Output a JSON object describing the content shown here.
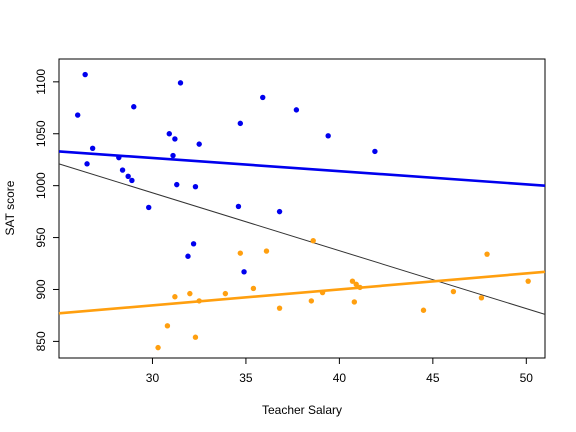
{
  "chart_data": {
    "type": "scatter",
    "title": "",
    "xlabel": "Teacher Salary",
    "ylabel": "SAT score",
    "xlim": [
      25.0,
      51.0
    ],
    "ylim": [
      834,
      1122
    ],
    "x_ticks": [
      30,
      35,
      40,
      45,
      50
    ],
    "y_ticks": [
      850,
      900,
      950,
      1000,
      1050,
      1100
    ],
    "grid": false,
    "legend": "none",
    "series": [
      {
        "color": "#0000ee",
        "points": [
          [
            26.0,
            1068
          ],
          [
            26.4,
            1107
          ],
          [
            26.5,
            1021
          ],
          [
            26.8,
            1036
          ],
          [
            28.2,
            1027
          ],
          [
            28.4,
            1015
          ],
          [
            28.7,
            1009
          ],
          [
            28.9,
            1005
          ],
          [
            29.0,
            1076
          ],
          [
            29.8,
            979
          ],
          [
            30.9,
            1050
          ],
          [
            31.1,
            1029
          ],
          [
            31.2,
            1045
          ],
          [
            31.3,
            1001
          ],
          [
            31.5,
            1099
          ],
          [
            31.9,
            932
          ],
          [
            32.2,
            944
          ],
          [
            32.3,
            999
          ],
          [
            32.5,
            1040
          ],
          [
            34.6,
            980
          ],
          [
            34.7,
            1060
          ],
          [
            34.9,
            917
          ],
          [
            35.9,
            1085
          ],
          [
            36.8,
            975
          ],
          [
            37.7,
            1073
          ],
          [
            39.4,
            1048
          ],
          [
            41.9,
            1033
          ]
        ]
      },
      {
        "color": "#ff9f0f",
        "points": [
          [
            30.3,
            844
          ],
          [
            30.8,
            865
          ],
          [
            31.2,
            893
          ],
          [
            32.0,
            896
          ],
          [
            32.3,
            854
          ],
          [
            32.5,
            889
          ],
          [
            33.9,
            896
          ],
          [
            34.7,
            935
          ],
          [
            35.4,
            901
          ],
          [
            36.1,
            937
          ],
          [
            36.8,
            882
          ],
          [
            38.5,
            889
          ],
          [
            38.6,
            947
          ],
          [
            39.1,
            897
          ],
          [
            40.7,
            908
          ],
          [
            40.8,
            888
          ],
          [
            40.9,
            905
          ],
          [
            41.1,
            902
          ],
          [
            44.5,
            880
          ],
          [
            46.1,
            898
          ],
          [
            47.6,
            892
          ],
          [
            47.9,
            934
          ],
          [
            50.1,
            908
          ]
        ]
      }
    ],
    "lines": [
      {
        "color": "#0000ee",
        "width": 2.6,
        "x": [
          25.0,
          51.0
        ],
        "y": [
          1033,
          1000
        ]
      },
      {
        "color": "#333333",
        "width": 1.0,
        "x": [
          25.0,
          51.0
        ],
        "y": [
          1021,
          876
        ]
      },
      {
        "color": "#ff9f0f",
        "width": 2.6,
        "x": [
          25.0,
          51.0
        ],
        "y": [
          877,
          917
        ]
      }
    ]
  }
}
